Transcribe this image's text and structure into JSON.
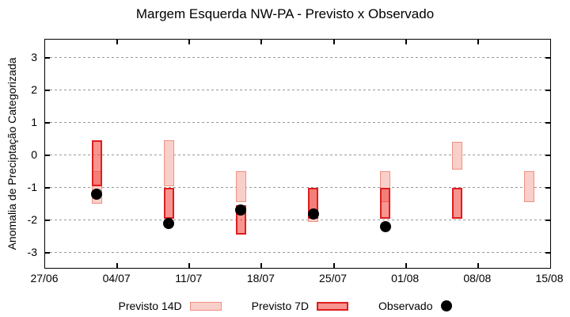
{
  "title": "Margem Esquerda NW-PA - Previsto x Observado",
  "legend": {
    "position": "below-center",
    "items": [
      {
        "label": "Previsto 14D",
        "swatch": "range-box-14d"
      },
      {
        "label": "Previsto 7D",
        "swatch": "range-box-7d"
      },
      {
        "label": "Observado",
        "swatch": "filled-black-dot"
      }
    ]
  },
  "colors": {
    "forecast14_fill": "#f9cfc9",
    "forecast14_border": "#ef9082",
    "forecast7_fill": "rgba(240,62,55,0.55)",
    "forecast7_border": "#df1d1d",
    "observed": "#000000",
    "grid": "#999999",
    "axis_border": "#000000"
  },
  "chart_data": {
    "type": "bar",
    "subtype": "floating-range-bars-plus-scatter",
    "title": "Margem Esquerda NW-PA - Previsto x Observado",
    "xlabel": "",
    "ylabel": "Anomalia de Preciptação Categorizada",
    "grid": "horizontal-dotted",
    "x_axis": {
      "start_label": "27/06",
      "tick_labels": [
        "27/06",
        "04/07",
        "11/07",
        "18/07",
        "25/07",
        "01/08",
        "08/08",
        "15/08"
      ],
      "tick_days": [
        0,
        7,
        14,
        21,
        28,
        35,
        42,
        49
      ],
      "span_days": 49
    },
    "y_axis": {
      "ticks": [
        3,
        2,
        1,
        0,
        -1,
        -2,
        -3
      ],
      "lim": [
        -3.5,
        3.55
      ]
    },
    "series": [
      {
        "name": "Previsto 14D",
        "kind": "range-bar",
        "style": "p14",
        "points": [
          {
            "day": 5,
            "x_date_approx": "02/07",
            "high": -0.5,
            "low": -1.5
          },
          {
            "day": 12,
            "x_date_approx": "09/07",
            "high": 0.45,
            "low": -0.95
          },
          {
            "day": 19,
            "x_date_approx": "16/07",
            "high": -0.5,
            "low": -1.45
          },
          {
            "day": 26,
            "x_date_approx": "23/07",
            "high": -1.0,
            "low": -2.05
          },
          {
            "day": 33,
            "x_date_approx": "30/07",
            "high": -0.5,
            "low": -1.45
          },
          {
            "day": 40,
            "x_date_approx": "06/08",
            "high": 0.4,
            "low": -0.45
          },
          {
            "day": 47,
            "x_date_approx": "13/08",
            "high": -0.5,
            "low": -1.45
          }
        ]
      },
      {
        "name": "Previsto 7D",
        "kind": "range-bar",
        "style": "p7",
        "points": [
          {
            "day": 5,
            "x_date_approx": "02/07",
            "high": 0.45,
            "low": -0.95
          },
          {
            "day": 12,
            "x_date_approx": "09/07",
            "high": -1.0,
            "low": -1.95
          },
          {
            "day": 19,
            "x_date_approx": "16/07",
            "high": -1.55,
            "low": -2.45
          },
          {
            "day": 26,
            "x_date_approx": "23/07",
            "high": -1.0,
            "low": -1.95
          },
          {
            "day": 33,
            "x_date_approx": "30/07",
            "high": -1.0,
            "low": -1.95
          },
          {
            "day": 40,
            "x_date_approx": "06/08",
            "high": -1.0,
            "low": -1.95
          }
        ]
      },
      {
        "name": "Observado",
        "kind": "scatter",
        "style": "obs",
        "points": [
          {
            "day": 5,
            "x_date_approx": "02/07",
            "value": -1.2
          },
          {
            "day": 12,
            "x_date_approx": "09/07",
            "value": -2.1
          },
          {
            "day": 19,
            "x_date_approx": "16/07",
            "value": -1.7
          },
          {
            "day": 26,
            "x_date_approx": "23/07",
            "value": -1.8
          },
          {
            "day": 33,
            "x_date_approx": "30/07",
            "value": -2.2
          }
        ]
      }
    ]
  }
}
